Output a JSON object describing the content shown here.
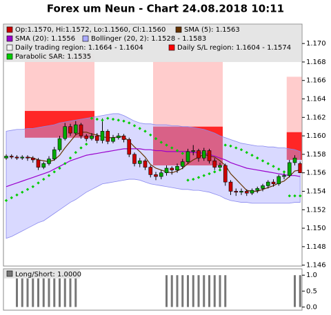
{
  "chart_data": [
    {
      "type": "candlestick",
      "title": "Forex um Neun - Chart 24.08.2018 10:11",
      "candle_label": "Op:1.1570, Hi:1.1572, Lo:1.1560, Cl:1.1560",
      "up_color": "#00aa00",
      "down_color": "#cc0000",
      "open": [
        1.1576,
        1.1578,
        1.1577,
        1.1576,
        1.1577,
        1.1576,
        1.1574,
        1.1566,
        1.157,
        1.1575,
        1.1585,
        1.1597,
        1.161,
        1.1603,
        1.1612,
        1.16,
        1.1597,
        1.16,
        1.1595,
        1.1605,
        1.1594,
        1.1598,
        1.16,
        1.1596,
        1.158,
        1.157,
        1.1573,
        1.1566,
        1.1558,
        1.1556,
        1.156,
        1.1565,
        1.1563,
        1.1567,
        1.1572,
        1.1583,
        1.1584,
        1.1576,
        1.1584,
        1.1573,
        1.1566,
        1.1568,
        1.155,
        1.154,
        1.1539,
        1.154,
        1.1538,
        1.1541,
        1.1543,
        1.1546,
        1.155,
        1.1548,
        1.1556,
        1.1557,
        1.1571,
        1.157
      ],
      "high": [
        1.158,
        1.158,
        1.1579,
        1.1579,
        1.1579,
        1.1578,
        1.1576,
        1.1572,
        1.1578,
        1.1588,
        1.16,
        1.1614,
        1.1613,
        1.1616,
        1.1614,
        1.1602,
        1.1603,
        1.1603,
        1.1619,
        1.1607,
        1.1601,
        1.1603,
        1.1602,
        1.1598,
        1.1582,
        1.1576,
        1.1575,
        1.1568,
        1.1561,
        1.1563,
        1.1568,
        1.1567,
        1.157,
        1.1575,
        1.1586,
        1.159,
        1.1586,
        1.1587,
        1.1586,
        1.1576,
        1.1571,
        1.157,
        1.1552,
        1.1543,
        1.1543,
        1.1542,
        1.1543,
        1.1545,
        1.1548,
        1.1552,
        1.1553,
        1.1558,
        1.156,
        1.1574,
        1.1579,
        1.1572
      ],
      "low": [
        1.1574,
        1.1575,
        1.1574,
        1.1574,
        1.1573,
        1.1571,
        1.1563,
        1.1564,
        1.1568,
        1.1573,
        1.1583,
        1.1595,
        1.16,
        1.1601,
        1.1597,
        1.1594,
        1.1595,
        1.1592,
        1.1592,
        1.1591,
        1.1592,
        1.1596,
        1.1593,
        1.1577,
        1.1567,
        1.1566,
        1.1563,
        1.1555,
        1.1552,
        1.1553,
        1.1557,
        1.1558,
        1.156,
        1.1564,
        1.157,
        1.1579,
        1.1572,
        1.1573,
        1.157,
        1.1563,
        1.1562,
        1.1546,
        1.1536,
        1.1535,
        1.1536,
        1.1535,
        1.1536,
        1.1538,
        1.154,
        1.1543,
        1.1545,
        1.1546,
        1.1553,
        1.1555,
        1.1568,
        1.156
      ],
      "close": [
        1.1578,
        1.1577,
        1.1576,
        1.1577,
        1.1576,
        1.1574,
        1.1566,
        1.157,
        1.1575,
        1.1585,
        1.1597,
        1.161,
        1.1603,
        1.1612,
        1.16,
        1.1597,
        1.16,
        1.1595,
        1.1605,
        1.1594,
        1.1598,
        1.16,
        1.1596,
        1.158,
        1.157,
        1.1573,
        1.1566,
        1.1558,
        1.1556,
        1.156,
        1.1565,
        1.1563,
        1.1567,
        1.1572,
        1.1583,
        1.1584,
        1.1576,
        1.1584,
        1.1573,
        1.1566,
        1.1568,
        1.155,
        1.154,
        1.1539,
        1.154,
        1.1538,
        1.1541,
        1.1543,
        1.1546,
        1.155,
        1.1548,
        1.1556,
        1.1557,
        1.1571,
        1.1576,
        1.156
      ],
      "regions": [
        {
          "name": "Daily trading region: 1.1664 - 1.1604",
          "color": "#ffcccc",
          "ranges": [
            {
              "start": 4,
              "end": 16,
              "high": 1.1689,
              "low": 1.1627
            },
            {
              "start": 28,
              "end": 40,
              "high": 1.1681,
              "low": 1.161
            },
            {
              "start": 53,
              "end": 55,
              "high": 1.1664,
              "low": 1.1604
            }
          ]
        },
        {
          "name": "Daily S/L region: 1.1604 - 1.1574",
          "color": "#ff0000",
          "ranges": [
            {
              "start": 4,
              "end": 16,
              "high": 1.1627,
              "low": 1.1598
            },
            {
              "start": 28,
              "end": 40,
              "high": 1.161,
              "low": 1.1568
            },
            {
              "start": 53,
              "end": 55,
              "high": 1.1604,
              "low": 1.1574
            }
          ]
        }
      ],
      "bollinger": {
        "name": "Bollinger (20, 2): 1.1528 - 1.1583",
        "color": "#aaaaff",
        "upper": [
          1.1605,
          1.1606,
          1.1607,
          1.1607,
          1.1608,
          1.1608,
          1.1609,
          1.161,
          1.1611,
          1.1612,
          1.1614,
          1.1615,
          1.1616,
          1.1617,
          1.1618,
          1.1619,
          1.162,
          1.1621,
          1.1622,
          1.1623,
          1.1624,
          1.1624,
          1.1622,
          1.1619,
          1.1616,
          1.1614,
          1.1613,
          1.1613,
          1.1612,
          1.1612,
          1.1612,
          1.1611,
          1.1611,
          1.161,
          1.161,
          1.1609,
          1.1608,
          1.1607,
          1.1605,
          1.1603,
          1.16,
          1.1598,
          1.1596,
          1.1594,
          1.1592,
          1.1591,
          1.159,
          1.1589,
          1.1589,
          1.1588,
          1.1588,
          1.1587,
          1.1587,
          1.1586,
          1.1585,
          1.1583
        ],
        "lower": [
          1.1489,
          1.1491,
          1.1494,
          1.1497,
          1.15,
          1.1503,
          1.1506,
          1.1508,
          1.1512,
          1.1516,
          1.152,
          1.1524,
          1.1528,
          1.1531,
          1.1535,
          1.1539,
          1.1542,
          1.1545,
          1.1548,
          1.1549,
          1.155,
          1.1551,
          1.1552,
          1.1553,
          1.1553,
          1.1552,
          1.155,
          1.1548,
          1.1547,
          1.1546,
          1.1545,
          1.1544,
          1.1543,
          1.1542,
          1.1542,
          1.1541,
          1.1541,
          1.154,
          1.1539,
          1.1537,
          1.1535,
          1.1532,
          1.153,
          1.1529,
          1.1528,
          1.1528,
          1.1527,
          1.1527,
          1.1527,
          1.1527,
          1.1527,
          1.1527,
          1.1527,
          1.1527,
          1.1528,
          1.1528
        ]
      },
      "lines": [
        {
          "name": "SMA (5): 1.1563",
          "color": "#663300",
          "values": [
            null,
            null,
            null,
            null,
            1.1577,
            1.1576,
            1.1574,
            1.1573,
            1.1572,
            1.1574,
            1.1579,
            1.1587,
            1.1594,
            1.1601,
            1.1604,
            1.1604,
            1.1602,
            1.1601,
            1.1599,
            1.1598,
            1.1598,
            1.1599,
            1.1599,
            1.1594,
            1.1588,
            1.1583,
            1.1577,
            1.1569,
            1.1565,
            1.1563,
            1.1561,
            1.156,
            1.1562,
            1.1565,
            1.157,
            1.1574,
            1.1577,
            1.158,
            1.1578,
            1.1577,
            1.1573,
            1.1568,
            1.1559,
            1.1553,
            1.1547,
            1.1541,
            1.154,
            1.154,
            1.1542,
            1.1544,
            1.1546,
            1.1549,
            1.1551,
            1.1556,
            1.1562,
            1.1563
          ]
        },
        {
          "name": "SMA (20): 1.1556",
          "color": "#9900cc",
          "values": [
            1.1545,
            1.1547,
            1.1549,
            1.1551,
            1.1553,
            1.1555,
            1.1557,
            1.1559,
            1.1561,
            1.1564,
            1.1567,
            1.157,
            1.1573,
            1.1575,
            1.1577,
            1.1579,
            1.158,
            1.1581,
            1.1582,
            1.1583,
            1.1584,
            1.1585,
            1.1586,
            1.1586,
            1.1586,
            1.1586,
            1.1585,
            1.1585,
            1.1584,
            1.1584,
            1.1583,
            1.1583,
            1.1583,
            1.1583,
            1.1583,
            1.1582,
            1.1582,
            1.1581,
            1.158,
            1.1578,
            1.1576,
            1.1574,
            1.1571,
            1.1569,
            1.1567,
            1.1565,
            1.1564,
            1.1563,
            1.1562,
            1.1561,
            1.156,
            1.1559,
            1.1558,
            1.1557,
            1.1557,
            1.1556
          ]
        }
      ],
      "sar": {
        "name": "Parabolic SAR: 1.1535",
        "color": "#00cc00",
        "values": [
          1.153,
          1.1533,
          1.1536,
          1.1539,
          1.1542,
          1.1545,
          1.1549,
          1.1553,
          1.1557,
          1.1561,
          1.1565,
          1.157,
          1.1576,
          1.1582,
          1.1587,
          1.1591,
          1.1619,
          1.1618,
          1.1617,
          1.1619,
          1.1618,
          1.1617,
          1.1616,
          1.1614,
          1.1611,
          1.1608,
          1.1605,
          1.1601,
          1.1597,
          1.1593,
          1.159,
          1.1587,
          1.1584,
          1.1581,
          1.1552,
          1.1553,
          1.1555,
          1.1557,
          1.1559,
          1.1561,
          1.1563,
          1.159,
          1.1589,
          1.1587,
          1.1585,
          1.1582,
          1.1579,
          1.1576,
          1.1573,
          1.157,
          1.1567,
          1.1564,
          1.1561,
          1.1535,
          1.1535,
          1.1535
        ]
      },
      "ylim": [
        1.1459,
        1.1721
      ],
      "yticks": [
        1.146,
        1.148,
        {
          "value": 1.15,
          "label": "1.150"
        },
        1.152,
        1.154,
        1.156,
        1.158,
        {
          "value": 1.16,
          "label": "1.160"
        },
        1.162,
        1.164,
        1.166,
        1.168,
        {
          "value": 1.17,
          "label": "1.170"
        }
      ]
    },
    {
      "type": "bar",
      "title": "Long/Short: 1.0000",
      "color": "#777777",
      "values": [
        0,
        0,
        1,
        1,
        1,
        1,
        1,
        1,
        1,
        1,
        1,
        1,
        1,
        1,
        0,
        0,
        0,
        0,
        0,
        0,
        0,
        0,
        0,
        0,
        0,
        0,
        0,
        0,
        0,
        0,
        1,
        1,
        1,
        1,
        1,
        1,
        1,
        1,
        1,
        1,
        1,
        1,
        0,
        0,
        0,
        0,
        0,
        0,
        0,
        0,
        0,
        0,
        0,
        0,
        1,
        1
      ],
      "ylim": [
        -0.1,
        1.2
      ],
      "yticks": [
        {
          "value": 0,
          "label": "0.0"
        },
        0.5,
        {
          "value": 1,
          "label": "1.0"
        }
      ]
    }
  ]
}
